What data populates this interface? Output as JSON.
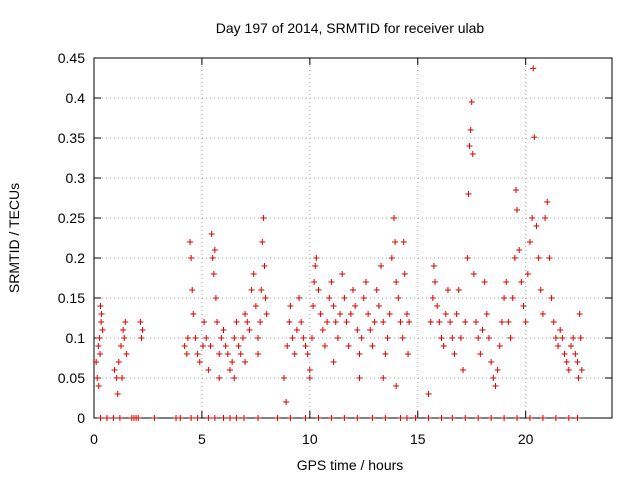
{
  "chart_data": {
    "type": "scatter",
    "title": "Day 197 of 2014, SRMTID for receiver ulab",
    "xlabel": "GPS time / hours",
    "ylabel": "SRMTID / TECUs",
    "xlim": [
      0,
      24
    ],
    "ylim": [
      0,
      0.45
    ],
    "xticks": [
      0,
      5,
      10,
      15,
      20
    ],
    "xtick_labels": [
      "0",
      "5",
      "10",
      "15",
      "20"
    ],
    "yticks": [
      0,
      0.05,
      0.1,
      0.15,
      0.2,
      0.25,
      0.3,
      0.35,
      0.4,
      0.45
    ],
    "ytick_labels": [
      "0",
      "0.05",
      "0.1",
      "0.15",
      "0.2",
      "0.25",
      "0.3",
      "0.35",
      "0.4",
      "0.45"
    ],
    "grid": true,
    "marker": "+",
    "marker_color": "#dd0000",
    "series": [
      {
        "name": "SRMTID",
        "points": [
          [
            0.1,
            0.07
          ],
          [
            0.15,
            0.05
          ],
          [
            0.2,
            0.09
          ],
          [
            0.25,
            0.1
          ],
          [
            0.3,
            0.14
          ],
          [
            0.35,
            0.13
          ],
          [
            0.4,
            0.11
          ],
          [
            0.22,
            0.04
          ],
          [
            0.28,
            0.08
          ],
          [
            0.33,
            0.12
          ],
          [
            0.95,
            0.06
          ],
          [
            1.05,
            0.05
          ],
          [
            1.15,
            0.07
          ],
          [
            1.25,
            0.09
          ],
          [
            1.35,
            0.11
          ],
          [
            1.45,
            0.12
          ],
          [
            1.5,
            0.08
          ],
          [
            1.3,
            0.05
          ],
          [
            1.1,
            0.03
          ],
          [
            1.4,
            0.1
          ],
          [
            2.15,
            0.12
          ],
          [
            2.2,
            0.1
          ],
          [
            2.25,
            0.11
          ],
          [
            4.2,
            0.09
          ],
          [
            4.3,
            0.08
          ],
          [
            4.35,
            0.1
          ],
          [
            4.45,
            0.22
          ],
          [
            4.5,
            0.2
          ],
          [
            4.55,
            0.16
          ],
          [
            4.6,
            0.13
          ],
          [
            4.7,
            0.1
          ],
          [
            4.8,
            0.08
          ],
          [
            4.9,
            0.07
          ],
          [
            5.05,
            0.09
          ],
          [
            5.1,
            0.12
          ],
          [
            5.2,
            0.1
          ],
          [
            5.3,
            0.06
          ],
          [
            5.4,
            0.09
          ],
          [
            5.45,
            0.23
          ],
          [
            5.5,
            0.2
          ],
          [
            5.55,
            0.18
          ],
          [
            5.6,
            0.21
          ],
          [
            5.65,
            0.15
          ],
          [
            5.7,
            0.12
          ],
          [
            5.8,
            0.08
          ],
          [
            5.9,
            0.1
          ],
          [
            6.0,
            0.11
          ],
          [
            6.1,
            0.09
          ],
          [
            6.2,
            0.08
          ],
          [
            6.3,
            0.06
          ],
          [
            6.4,
            0.07
          ],
          [
            6.5,
            0.1
          ],
          [
            6.6,
            0.12
          ],
          [
            6.7,
            0.09
          ],
          [
            6.8,
            0.08
          ],
          [
            6.9,
            0.1
          ],
          [
            7.0,
            0.13
          ],
          [
            7.1,
            0.12
          ],
          [
            7.2,
            0.11
          ],
          [
            7.3,
            0.16
          ],
          [
            7.4,
            0.18
          ],
          [
            7.5,
            0.14
          ],
          [
            7.6,
            0.1
          ],
          [
            7.7,
            0.12
          ],
          [
            7.75,
            0.16
          ],
          [
            7.8,
            0.22
          ],
          [
            7.85,
            0.25
          ],
          [
            7.9,
            0.19
          ],
          [
            7.95,
            0.15
          ],
          [
            8.0,
            0.13
          ],
          [
            7.6,
            0.08
          ],
          [
            7.0,
            0.07
          ],
          [
            6.5,
            0.05
          ],
          [
            5.8,
            0.05
          ],
          [
            8.8,
            0.05
          ],
          [
            8.9,
            0.02
          ],
          [
            8.95,
            0.09
          ],
          [
            9.05,
            0.12
          ],
          [
            9.1,
            0.14
          ],
          [
            9.2,
            0.1
          ],
          [
            9.3,
            0.08
          ],
          [
            9.4,
            0.11
          ],
          [
            9.5,
            0.15
          ],
          [
            9.6,
            0.12
          ],
          [
            9.7,
            0.1
          ],
          [
            9.8,
            0.09
          ],
          [
            9.9,
            0.08
          ],
          [
            10.0,
            0.06
          ],
          [
            10.1,
            0.1
          ],
          [
            10.15,
            0.14
          ],
          [
            10.2,
            0.17
          ],
          [
            10.25,
            0.19
          ],
          [
            10.3,
            0.2
          ],
          [
            10.4,
            0.16
          ],
          [
            10.5,
            0.13
          ],
          [
            10.6,
            0.11
          ],
          [
            10.7,
            0.09
          ],
          [
            10.8,
            0.12
          ],
          [
            10.9,
            0.15
          ],
          [
            11.0,
            0.17
          ],
          [
            11.1,
            0.14
          ],
          [
            11.2,
            0.12
          ],
          [
            11.3,
            0.1
          ],
          [
            11.4,
            0.13
          ],
          [
            11.5,
            0.18
          ],
          [
            11.6,
            0.15
          ],
          [
            11.7,
            0.12
          ],
          [
            11.8,
            0.09
          ],
          [
            11.9,
            0.13
          ],
          [
            12.0,
            0.16
          ],
          [
            12.1,
            0.14
          ],
          [
            12.2,
            0.11
          ],
          [
            12.3,
            0.08
          ],
          [
            12.4,
            0.1
          ],
          [
            12.5,
            0.15
          ],
          [
            12.6,
            0.17
          ],
          [
            12.7,
            0.13
          ],
          [
            12.8,
            0.11
          ],
          [
            12.9,
            0.09
          ],
          [
            13.0,
            0.12
          ],
          [
            13.1,
            0.16
          ],
          [
            13.2,
            0.14
          ],
          [
            13.3,
            0.19
          ],
          [
            13.4,
            0.12
          ],
          [
            13.5,
            0.08
          ],
          [
            13.6,
            0.1
          ],
          [
            13.7,
            0.13
          ],
          [
            13.8,
            0.2
          ],
          [
            13.9,
            0.25
          ],
          [
            13.95,
            0.22
          ],
          [
            14.0,
            0.17
          ],
          [
            14.1,
            0.15
          ],
          [
            14.2,
            0.12
          ],
          [
            14.3,
            0.1
          ],
          [
            14.35,
            0.22
          ],
          [
            14.4,
            0.18
          ],
          [
            14.5,
            0.13
          ],
          [
            14.55,
            0.08
          ],
          [
            14.6,
            0.12
          ],
          [
            12.3,
            0.05
          ],
          [
            13.4,
            0.05
          ],
          [
            14.0,
            0.04
          ],
          [
            11.1,
            0.07
          ],
          [
            10.0,
            0.05
          ],
          [
            15.5,
            0.03
          ],
          [
            15.6,
            0.12
          ],
          [
            15.7,
            0.15
          ],
          [
            15.75,
            0.19
          ],
          [
            15.8,
            0.17
          ],
          [
            15.9,
            0.14
          ],
          [
            16.0,
            0.12
          ],
          [
            16.1,
            0.1
          ],
          [
            16.2,
            0.09
          ],
          [
            16.3,
            0.13
          ],
          [
            16.4,
            0.16
          ],
          [
            16.5,
            0.12
          ],
          [
            16.6,
            0.1
          ],
          [
            16.7,
            0.08
          ],
          [
            16.8,
            0.13
          ],
          [
            16.9,
            0.16
          ],
          [
            17.0,
            0.1
          ],
          [
            17.1,
            0.06
          ],
          [
            17.2,
            0.12
          ],
          [
            17.3,
            0.2
          ],
          [
            17.35,
            0.28
          ],
          [
            17.4,
            0.34
          ],
          [
            17.45,
            0.36
          ],
          [
            17.5,
            0.395
          ],
          [
            17.55,
            0.33
          ],
          [
            17.6,
            0.18
          ],
          [
            17.7,
            0.12
          ],
          [
            17.8,
            0.1
          ],
          [
            17.9,
            0.08
          ],
          [
            18.0,
            0.11
          ],
          [
            18.1,
            0.17
          ],
          [
            18.2,
            0.13
          ],
          [
            18.3,
            0.1
          ],
          [
            18.4,
            0.07
          ],
          [
            18.5,
            0.05
          ],
          [
            18.6,
            0.04
          ],
          [
            18.7,
            0.06
          ],
          [
            18.8,
            0.09
          ],
          [
            18.9,
            0.12
          ],
          [
            19.0,
            0.15
          ],
          [
            19.1,
            0.17
          ],
          [
            19.2,
            0.12
          ],
          [
            19.3,
            0.1
          ],
          [
            19.4,
            0.15
          ],
          [
            19.5,
            0.2
          ],
          [
            19.55,
            0.285
          ],
          [
            19.6,
            0.26
          ],
          [
            19.7,
            0.21
          ],
          [
            19.8,
            0.17
          ],
          [
            19.9,
            0.14
          ],
          [
            20.0,
            0.12
          ],
          [
            20.1,
            0.18
          ],
          [
            20.2,
            0.22
          ],
          [
            20.3,
            0.25
          ],
          [
            20.35,
            0.437
          ],
          [
            20.4,
            0.351
          ],
          [
            20.5,
            0.24
          ],
          [
            20.6,
            0.2
          ],
          [
            20.7,
            0.16
          ],
          [
            20.8,
            0.13
          ],
          [
            20.9,
            0.25
          ],
          [
            21.0,
            0.27
          ],
          [
            21.1,
            0.2
          ],
          [
            21.2,
            0.15
          ],
          [
            21.3,
            0.12
          ],
          [
            21.4,
            0.1
          ],
          [
            21.5,
            0.09
          ],
          [
            21.6,
            0.11
          ],
          [
            21.7,
            0.1
          ],
          [
            21.8,
            0.08
          ],
          [
            21.9,
            0.07
          ],
          [
            22.0,
            0.06
          ],
          [
            22.1,
            0.09
          ],
          [
            22.2,
            0.1
          ],
          [
            22.3,
            0.08
          ],
          [
            22.4,
            0.07
          ],
          [
            22.5,
            0.13
          ],
          [
            22.55,
            0.1
          ],
          [
            22.6,
            0.06
          ],
          [
            22.45,
            0.05
          ]
        ]
      }
    ],
    "zero_points_x": [
      0.3,
      0.6,
      0.9,
      1.2,
      1.75,
      1.85,
      1.95,
      2.05,
      2.8,
      3.8,
      4.0,
      4.5,
      4.8,
      5.3,
      5.6,
      6.0,
      6.3,
      6.6,
      6.95,
      7.6,
      8.5,
      9.1,
      9.8,
      10.4,
      11.0,
      11.6,
      12.2,
      12.9,
      13.5,
      14.2,
      14.5,
      14.9,
      15.5,
      16.1,
      16.6,
      17.2,
      17.8,
      18.4,
      19.0,
      19.6,
      20.2,
      20.8,
      21.4,
      22.0,
      22.4
    ]
  }
}
